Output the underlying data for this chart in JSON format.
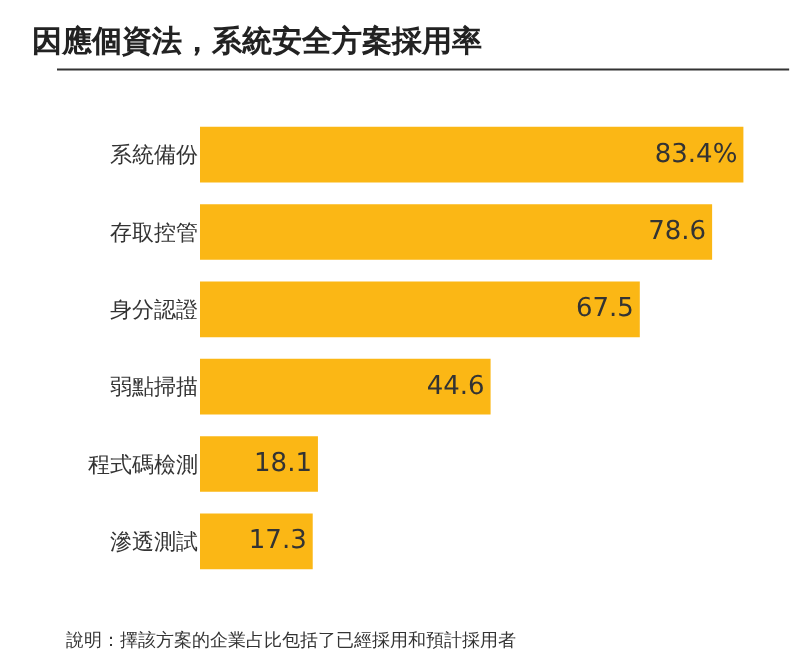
{
  "chart_data": {
    "type": "bar",
    "orientation": "horizontal",
    "title": "因應個資法，系統安全方案採用率",
    "categories": [
      "系統備份",
      "存取控管",
      "身分認證",
      "弱點掃描",
      "程式碼檢測",
      "滲透測試"
    ],
    "values": [
      83.4,
      78.6,
      67.5,
      44.6,
      18.1,
      17.3
    ],
    "value_labels": [
      "83.4%",
      "78.6",
      "67.5",
      "44.6",
      "18.1",
      "17.3"
    ],
    "color": "#fbb715",
    "annotations": [
      "說明：擇該方案的企業占比包括了已經採用和預計採用者"
    ]
  }
}
